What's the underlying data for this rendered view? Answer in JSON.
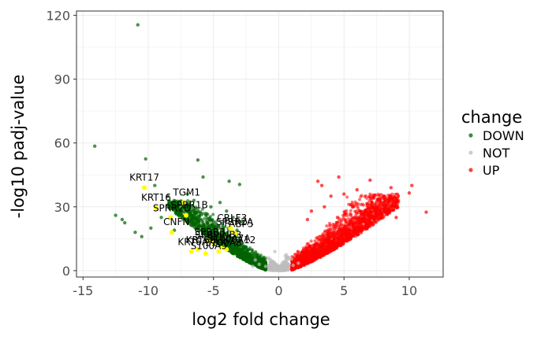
{
  "chart_data": {
    "type": "scatter",
    "title": "",
    "xlabel": "log2 fold change",
    "ylabel": "-log10 padj-value",
    "xlim": [
      -15.5,
      12.6
    ],
    "ylim": [
      -3.0,
      122.0
    ],
    "xticks": [
      -15,
      -10,
      -5,
      0,
      5,
      10
    ],
    "yticks": [
      0,
      30,
      60,
      90,
      120
    ],
    "grid": true,
    "legend": {
      "title": "change",
      "position": "right",
      "entries": [
        {
          "name": "DOWN",
          "color": "#006400"
        },
        {
          "name": "NOT",
          "color": "#bebebe"
        },
        {
          "name": "UP",
          "color": "#ff0000"
        }
      ]
    },
    "series": [
      {
        "name": "DOWN",
        "color": "#006400",
        "points": [
          [
            -10.8,
            115.5
          ],
          [
            -14.1,
            58.5
          ],
          [
            -10.2,
            52.5
          ],
          [
            -6.2,
            52.0
          ],
          [
            -5.8,
            44.0
          ],
          [
            -3.8,
            42.0
          ],
          [
            -3.0,
            40.5
          ],
          [
            -9.5,
            40.0
          ],
          [
            -12.5,
            26.0
          ],
          [
            -12.0,
            24.0
          ],
          [
            -11.8,
            22.5
          ],
          [
            -8.5,
            35.0
          ],
          [
            -7.8,
            30.0
          ],
          [
            -7.0,
            36.0
          ],
          [
            -6.5,
            33.0
          ],
          [
            -5.2,
            30.0
          ],
          [
            -4.5,
            32.0
          ],
          [
            -4.0,
            28.0
          ],
          [
            -3.5,
            25.0
          ],
          [
            -2.9,
            23.0
          ],
          [
            -9.8,
            20.0
          ],
          [
            -9.0,
            25.0
          ],
          [
            -11.0,
            18.0
          ],
          [
            -10.5,
            16.0
          ],
          [
            -8.0,
            19.0
          ],
          [
            -6.8,
            24.0
          ],
          [
            -6.0,
            27.0
          ],
          [
            -5.5,
            21.0
          ],
          [
            -4.8,
            19.5
          ],
          [
            -3.2,
            19.0
          ]
        ]
      },
      {
        "name": "NOT",
        "color": "#bebebe",
        "points": [
          [
            -1.5,
            3.0
          ],
          [
            -1.0,
            2.0
          ],
          [
            -0.6,
            1.2
          ],
          [
            -0.2,
            0.5
          ],
          [
            0.0,
            0.3
          ],
          [
            0.3,
            0.8
          ],
          [
            0.7,
            1.5
          ],
          [
            1.1,
            2.5
          ],
          [
            1.5,
            3.5
          ],
          [
            -1.8,
            5.0
          ],
          [
            -0.8,
            6.0
          ],
          [
            0.5,
            7.0
          ],
          [
            -0.3,
            9.0
          ],
          [
            1.0,
            5.5
          ],
          [
            -2.0,
            2.0
          ]
        ]
      },
      {
        "name": "UP",
        "color": "#ff0000",
        "points": [
          [
            3.0,
            42.0
          ],
          [
            3.3,
            40.0
          ],
          [
            4.6,
            44.0
          ],
          [
            7.0,
            42.5
          ],
          [
            8.6,
            39.0
          ],
          [
            10.2,
            40.0
          ],
          [
            10.0,
            36.5
          ],
          [
            11.3,
            27.5
          ],
          [
            8.0,
            35.0
          ],
          [
            6.0,
            38.0
          ],
          [
            5.0,
            36.0
          ],
          [
            4.0,
            35.0
          ],
          [
            3.5,
            30.0
          ],
          [
            2.5,
            28.0
          ],
          [
            7.5,
            30.0
          ],
          [
            9.0,
            25.0
          ],
          [
            6.5,
            27.0
          ],
          [
            5.5,
            31.0
          ],
          [
            4.5,
            25.0
          ],
          [
            2.2,
            24.0
          ]
        ]
      }
    ],
    "highlighted": [
      {
        "gene": "KRT17",
        "x": -10.3,
        "y": 39.0
      },
      {
        "gene": "KRT16",
        "x": -9.4,
        "y": 29.5
      },
      {
        "gene": "TGM1",
        "x": -7.3,
        "y": 32.0
      },
      {
        "gene": "SPRR2D",
        "x": -8.3,
        "y": 25.0
      },
      {
        "gene": "SPRR1B",
        "x": -7.1,
        "y": 26.0
      },
      {
        "gene": "CNFN",
        "x": -8.2,
        "y": 18.0
      },
      {
        "gene": "CRLF3",
        "x": -3.7,
        "y": 20.0
      },
      {
        "gene": "SPRR2A",
        "x": -3.5,
        "y": 18.0
      },
      {
        "gene": "FABP5",
        "x": -3.3,
        "y": 17.5
      },
      {
        "gene": "SPRR3",
        "x": -5.4,
        "y": 14.0
      },
      {
        "gene": "SERPINB3",
        "x": -5.0,
        "y": 13.0
      },
      {
        "gene": "S100A12",
        "x": -4.0,
        "y": 10.0
      },
      {
        "gene": "S100A7A",
        "x": -4.3,
        "y": 11.0
      },
      {
        "gene": "KRT6A",
        "x": -6.7,
        "y": 9.0
      },
      {
        "gene": "KRT6B",
        "x": -6.2,
        "y": 10.0
      },
      {
        "gene": "S100A9",
        "x": -5.6,
        "y": 8.0
      },
      {
        "gene": "S100A8",
        "x": -4.6,
        "y": 9.0
      }
    ],
    "highlight_color": "#ffff00"
  }
}
